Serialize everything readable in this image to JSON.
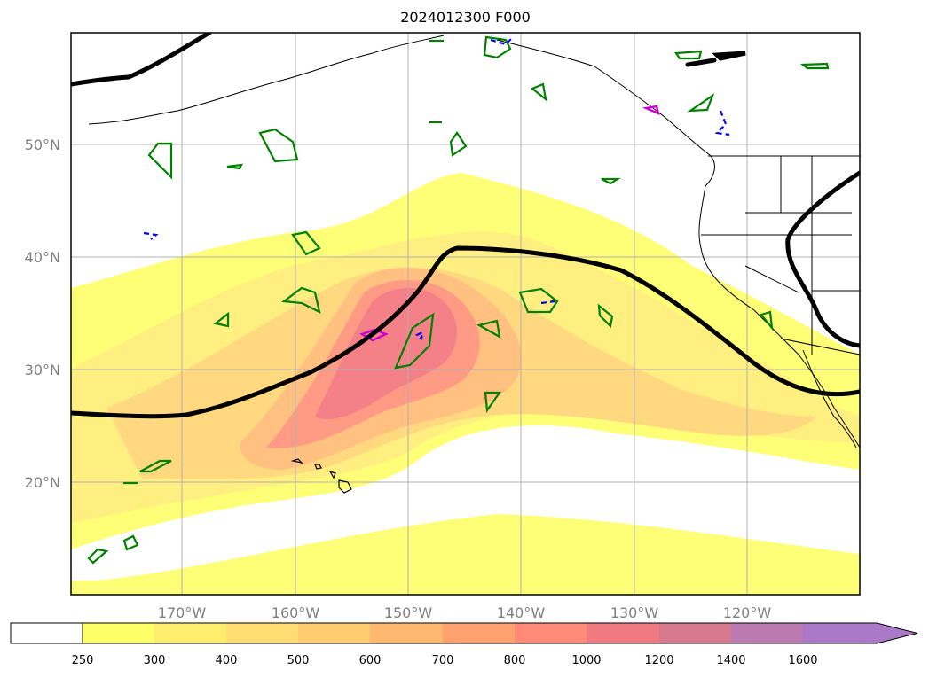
{
  "title": "2024012300 F000",
  "map": {
    "lon_range": [
      -180,
      -110
    ],
    "lat_range": [
      10,
      60
    ],
    "grid": true,
    "lon_gridlines": [
      -170,
      -160,
      -150,
      -140,
      -130,
      -120
    ],
    "lat_gridlines": [
      20,
      30,
      40,
      50
    ],
    "lon_tick_labels": [
      "170°W",
      "160°W",
      "150°W",
      "140°W",
      "130°W",
      "120°W"
    ],
    "lat_tick_labels": [
      "20°N",
      "30°N",
      "40°N",
      "50°N"
    ],
    "colors": {
      "jet_contour": "#000000",
      "outline_green": "#008000",
      "outline_blue": "#0000ff",
      "outline_magenta": "#cc00cc",
      "coastline": "#000000"
    }
  },
  "colorbar": {
    "levels": [
      250,
      300,
      400,
      500,
      600,
      700,
      800,
      1000,
      1200,
      1400,
      1600
    ],
    "tick_labels": [
      "250",
      "300",
      "400",
      "500",
      "600",
      "700",
      "800",
      "1000",
      "1200",
      "1400",
      "1600"
    ],
    "colors": [
      "#ffff66",
      "#ffee6e",
      "#ffdd70",
      "#ffcc70",
      "#ffb870",
      "#ffa070",
      "#ff8a78",
      "#f07a80",
      "#d77a90",
      "#bb7ab0",
      "#aa7ac8"
    ],
    "extend": "max"
  }
}
